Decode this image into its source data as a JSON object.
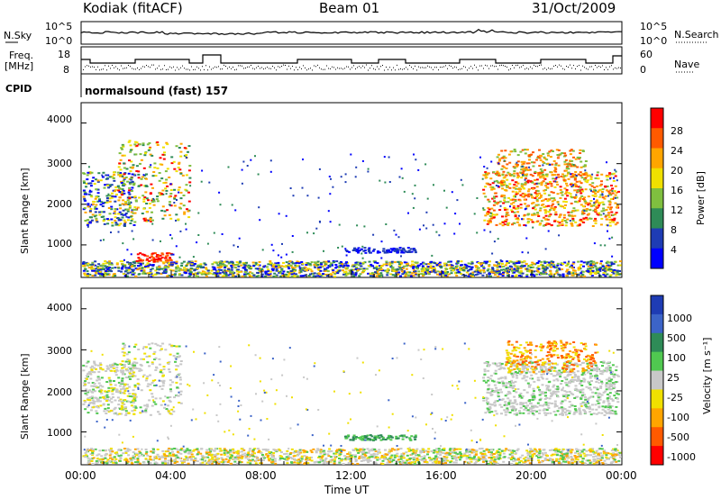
{
  "header": {
    "station": "Kodiak (fitACF)",
    "beam": "Beam 01",
    "date": "31/Oct/2009"
  },
  "top_panels": {
    "nsky_label": "N.Sky",
    "nsky_tick_top": "10^5",
    "nsky_tick_bottom": "10^0",
    "nsearch_label": "N.Search",
    "nsearch_tick_top": "10^5",
    "nsearch_tick_bottom": "10^0",
    "freq_label_1": "Freq.",
    "freq_label_2": "[MHz]",
    "freq_tick_top": "18",
    "freq_tick_bottom": "8",
    "nave_label": "Nave",
    "nave_tick_top": "60",
    "nave_tick_bottom": "0",
    "cpid_label": "CPID",
    "cpid_value": "normalsound (fast) 157"
  },
  "colors": {
    "power_scale": [
      "#0000ff",
      "#1e3cb4",
      "#2e8b57",
      "#7fbf3f",
      "#f0e000",
      "#ffa500",
      "#ff5a00",
      "#ff0000"
    ],
    "velocity_scale": [
      "#1e3cb4",
      "#3c64c8",
      "#2e8b57",
      "#50c850",
      "#c8c8c8",
      "#f0e000",
      "#ffa500",
      "#ff5a00",
      "#ff0000"
    ]
  },
  "chart_data": [
    {
      "type": "heatmap",
      "name": "power",
      "ylabel": "Slant Range [km]",
      "ylim": [
        200,
        4500
      ],
      "yticks": [
        "1000",
        "2000",
        "3000",
        "4000"
      ],
      "xticks": [
        "00:00",
        "04:00",
        "08:00",
        "12:00",
        "16:00",
        "20:00",
        "00:00"
      ],
      "colorbar": {
        "label": "Power [dB]",
        "ticks": [
          "4",
          "8",
          "12",
          "16",
          "20",
          "24",
          "28"
        ]
      }
    },
    {
      "type": "heatmap",
      "name": "velocity",
      "ylabel": "Slant Range [km]",
      "ylim": [
        200,
        4500
      ],
      "yticks": [
        "1000",
        "2000",
        "3000",
        "4000"
      ],
      "xticks": [
        "00:00",
        "04:00",
        "08:00",
        "12:00",
        "16:00",
        "20:00",
        "00:00"
      ],
      "xlabel": "Time UT",
      "colorbar": {
        "label": "Velocity [m s⁻¹]",
        "ticks": [
          "1000",
          "500",
          "100",
          "25",
          "-25",
          "-100",
          "-500",
          "-1000"
        ]
      }
    }
  ]
}
